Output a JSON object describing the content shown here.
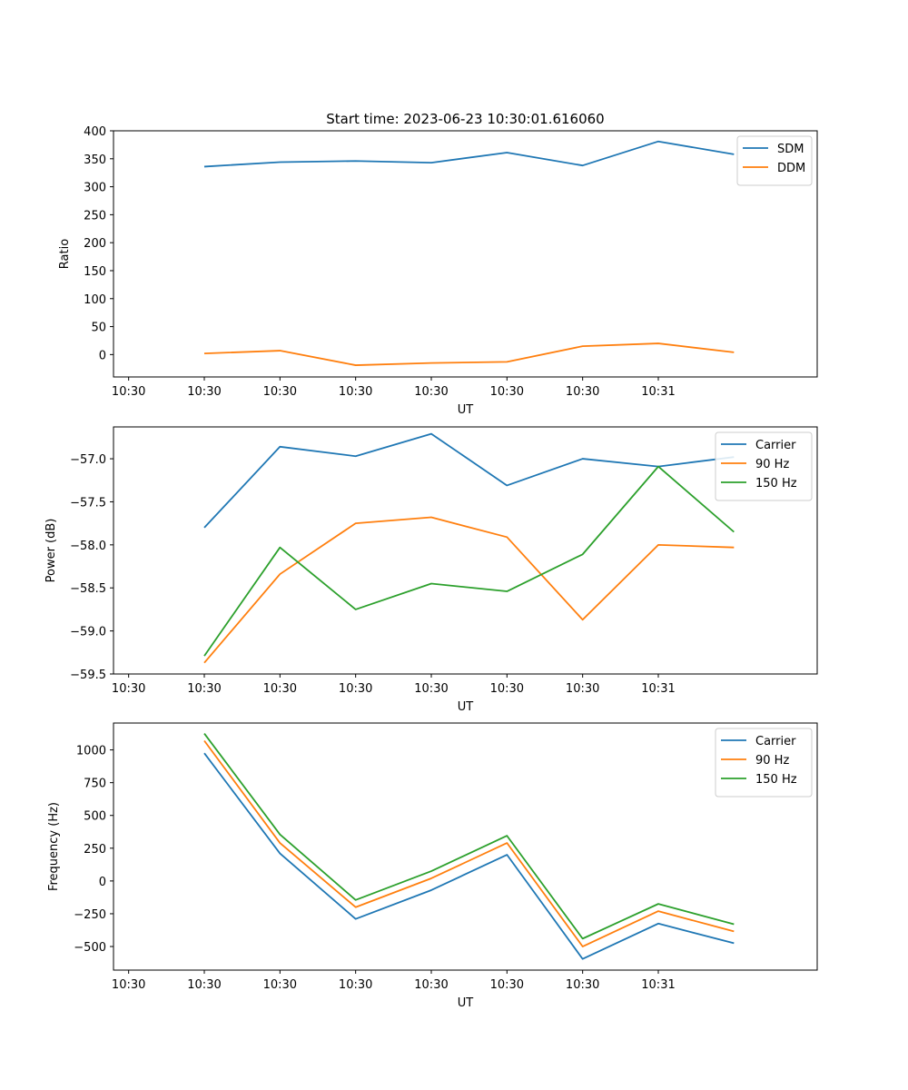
{
  "figure_title": "Start time: 2023-06-23 10:30:01.616060",
  "colors": {
    "blue": "#1f77b4",
    "orange": "#ff7f0e",
    "green": "#2ca02c"
  },
  "chart_data": [
    {
      "type": "line",
      "title": "Start time: 2023-06-23 10:30:01.616060",
      "xlabel": "UT",
      "ylabel": "Ratio",
      "x_ticks": [
        "10:30",
        "10:30",
        "10:30",
        "10:30",
        "10:30",
        "10:30",
        "10:30",
        "10:31"
      ],
      "x": [
        1,
        2,
        3,
        4,
        5,
        6,
        7,
        8
      ],
      "xlim": [
        -0.2,
        9.1
      ],
      "ylim": [
        -40,
        400
      ],
      "y_ticks": [
        0,
        50,
        100,
        150,
        200,
        250,
        300,
        350,
        400
      ],
      "grid": false,
      "legend": "top-right",
      "series": [
        {
          "name": "SDM",
          "color": "#1f77b4",
          "values": [
            336,
            344,
            346,
            343,
            361,
            338,
            381,
            358
          ]
        },
        {
          "name": "DDM",
          "color": "#ff7f0e",
          "values": [
            2,
            7,
            -19,
            -15,
            -13,
            15,
            20,
            4
          ]
        }
      ]
    },
    {
      "type": "line",
      "title": "",
      "xlabel": "UT",
      "ylabel": "Power (dB)",
      "x_ticks": [
        "10:30",
        "10:30",
        "10:30",
        "10:30",
        "10:30",
        "10:30",
        "10:30",
        "10:31"
      ],
      "x": [
        1,
        2,
        3,
        4,
        5,
        6,
        7,
        8
      ],
      "xlim": [
        -0.2,
        9.1
      ],
      "ylim": [
        -59.5,
        -56.63
      ],
      "y_ticks": [
        -59.5,
        -59.0,
        -58.5,
        -58.0,
        -57.5,
        -57.0
      ],
      "y_tick_labels": [
        "−59.5",
        "−59.0",
        "−58.5",
        "−58.0",
        "−57.5",
        "−57.0"
      ],
      "grid": false,
      "legend": "top-right",
      "series": [
        {
          "name": "Carrier",
          "color": "#1f77b4",
          "values": [
            -57.8,
            -56.86,
            -56.97,
            -56.71,
            -57.31,
            -57.0,
            -57.09,
            -56.98
          ]
        },
        {
          "name": "90 Hz",
          "color": "#ff7f0e",
          "values": [
            -59.37,
            -58.34,
            -57.75,
            -57.68,
            -57.91,
            -58.87,
            -58.0,
            -58.03
          ]
        },
        {
          "name": "150 Hz",
          "color": "#2ca02c",
          "values": [
            -59.29,
            -58.03,
            -58.75,
            -58.45,
            -58.54,
            -58.11,
            -57.09,
            -57.85
          ]
        }
      ]
    },
    {
      "type": "line",
      "title": "",
      "xlabel": "UT",
      "ylabel": "Frequency (Hz)",
      "x_ticks": [
        "10:30",
        "10:30",
        "10:30",
        "10:30",
        "10:30",
        "10:30",
        "10:30",
        "10:31"
      ],
      "x": [
        1,
        2,
        3,
        4,
        5,
        6,
        7,
        8
      ],
      "xlim": [
        -0.2,
        9.1
      ],
      "ylim": [
        -680,
        1205
      ],
      "y_ticks": [
        -500,
        -250,
        0,
        250,
        500,
        750,
        1000
      ],
      "y_tick_labels": [
        "−500",
        "−250",
        "0",
        "250",
        "500",
        "750",
        "1000"
      ],
      "grid": false,
      "legend": "top-right",
      "series": [
        {
          "name": "Carrier",
          "color": "#1f77b4",
          "values": [
            975,
            210,
            -290,
            -70,
            200,
            -595,
            -325,
            -475
          ]
        },
        {
          "name": "90 Hz",
          "color": "#ff7f0e",
          "values": [
            1070,
            290,
            -200,
            20,
            290,
            -500,
            -230,
            -385
          ]
        },
        {
          "name": "150 Hz",
          "color": "#2ca02c",
          "values": [
            1125,
            355,
            -145,
            75,
            345,
            -440,
            -175,
            -330
          ]
        }
      ]
    }
  ]
}
